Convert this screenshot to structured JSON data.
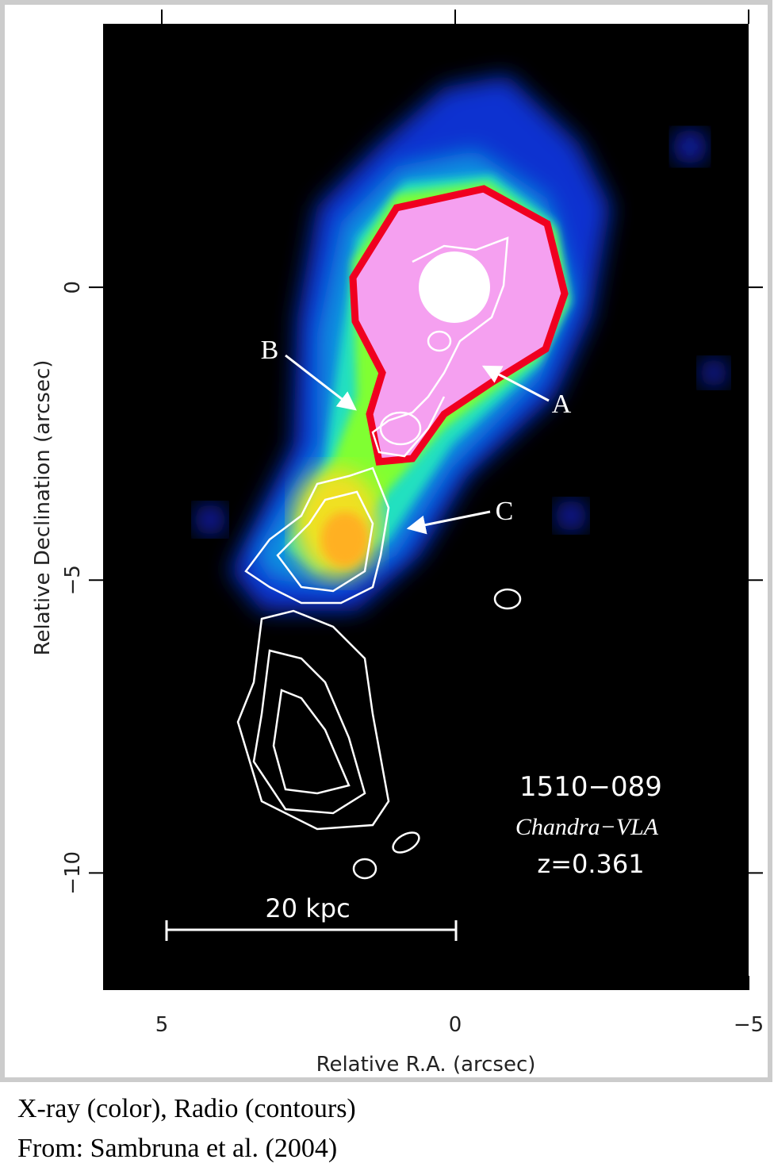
{
  "chart_data": {
    "type": "image",
    "xlabel": "Relative R.A. (arcsec)",
    "ylabel": "Relative Declination (arcsec)",
    "xlim": [
      6,
      -5
    ],
    "xticks": [
      5,
      0,
      {
        "value": -5,
        "label": "−5"
      }
    ],
    "ylim": [
      -12,
      4.5
    ],
    "yticks": [
      0,
      {
        "value": -5,
        "label": "−5"
      },
      {
        "value": -10,
        "label": "−10"
      }
    ],
    "annotations": [
      "A",
      "B",
      "C",
      "1510−089",
      "Chandra−VLA",
      "z=0.361",
      "20 kpc"
    ]
  },
  "caption": [
    "X-ray (color), Radio (contours)",
    "From: Sambruna et al. (2004)"
  ]
}
